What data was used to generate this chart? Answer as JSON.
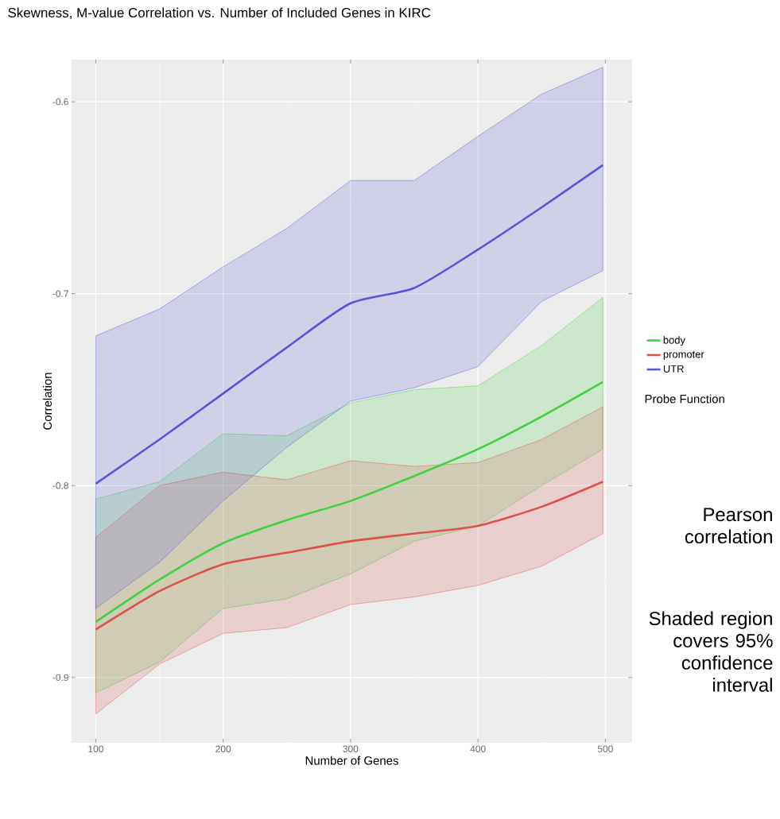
{
  "chart_data": {
    "type": "line",
    "title": "Skewness, M-value Correlation vs. Number of Included Genes in KIRC",
    "xlabel": "Number of Genes",
    "ylabel": "Correlation",
    "legend_title": "Probe Function",
    "x": [
      100,
      150,
      200,
      250,
      300,
      350,
      400,
      450,
      498
    ],
    "series": [
      {
        "name": "body",
        "color": "#3fd13f",
        "values": [
          -0.871,
          -0.849,
          -0.83,
          -0.818,
          -0.808,
          -0.795,
          -0.781,
          -0.764,
          -0.746
        ],
        "lower": [
          -0.908,
          -0.892,
          -0.864,
          -0.859,
          -0.846,
          -0.829,
          -0.821,
          -0.8,
          -0.781
        ],
        "upper": [
          -0.807,
          -0.798,
          -0.773,
          -0.774,
          -0.757,
          -0.75,
          -0.748,
          -0.727,
          -0.702
        ]
      },
      {
        "name": "promoter",
        "color": "#e0504a",
        "values": [
          -0.875,
          -0.855,
          -0.841,
          -0.835,
          -0.829,
          -0.825,
          -0.821,
          -0.811,
          -0.798
        ],
        "lower": [
          -0.919,
          -0.893,
          -0.877,
          -0.874,
          -0.862,
          -0.858,
          -0.852,
          -0.842,
          -0.825
        ],
        "upper": [
          -0.827,
          -0.8,
          -0.793,
          -0.797,
          -0.787,
          -0.79,
          -0.788,
          -0.776,
          -0.759
        ]
      },
      {
        "name": "UTR",
        "color": "#5555dd",
        "values": [
          -0.799,
          -0.776,
          -0.752,
          -0.728,
          -0.705,
          -0.697,
          -0.677,
          -0.655,
          -0.633
        ],
        "lower": [
          -0.864,
          -0.84,
          -0.808,
          -0.78,
          -0.756,
          -0.749,
          -0.738,
          -0.704,
          -0.688
        ],
        "upper": [
          -0.722,
          -0.708,
          -0.686,
          -0.666,
          -0.641,
          -0.641,
          -0.618,
          -0.596,
          -0.582
        ]
      }
    ],
    "xlim": [
      81,
      521
    ],
    "ylim": [
      -0.934,
      -0.578
    ],
    "xticks": [
      100,
      200,
      300,
      400,
      500
    ],
    "yticks": [
      -0.9,
      -0.8,
      -0.7,
      -0.6
    ],
    "grid": true,
    "legend": "right",
    "marker": "none",
    "line_style": "solid",
    "annotations": [
      "Pearson correlation",
      "Shaded region covers 95% confidence interval"
    ]
  }
}
